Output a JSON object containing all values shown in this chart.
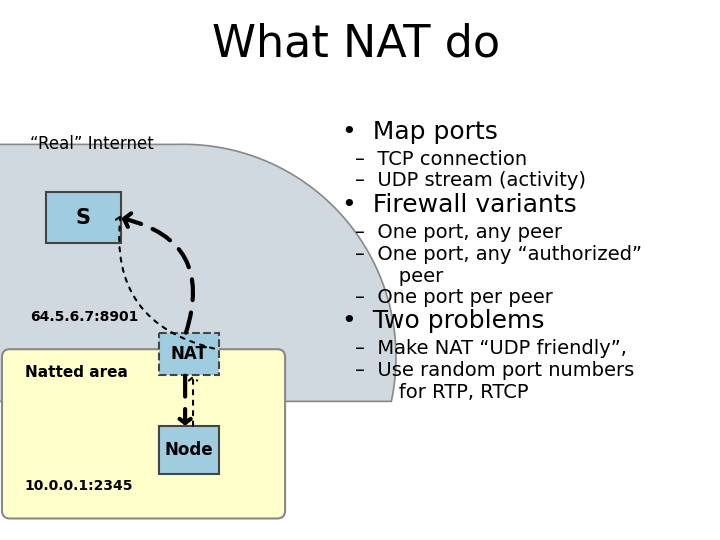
{
  "title": "What NAT do",
  "title_fontsize": 32,
  "background_color": "#ffffff",
  "left_panel": {
    "real_internet_label": "“Real” Internet",
    "real_internet_color": "#d0d8e0",
    "s_box_color": "#a0cce0",
    "s_label": "S",
    "nat_box_color": "#a0cce0",
    "nat_label": "NAT",
    "natted_area_color": "#ffffcc",
    "natted_area_label": "Natted area",
    "node_box_color": "#a0cce0",
    "node_label": "Node",
    "ip_nat": "64.5.6.7:8901",
    "ip_node": "10.0.0.1:2345"
  },
  "bullet_main_fontsize": 18,
  "bullet_sub_fontsize": 14,
  "bullet_points": [
    {
      "level": 0,
      "text": "Map ports"
    },
    {
      "level": 1,
      "text": "–  TCP connection"
    },
    {
      "level": 1,
      "text": "–  UDP stream (activity)"
    },
    {
      "level": 0,
      "text": "Firewall variants"
    },
    {
      "level": 1,
      "text": "–  One port, any peer"
    },
    {
      "level": 1,
      "text": "–  One port, any “authorized”\n       peer"
    },
    {
      "level": 1,
      "text": "–  One port per peer"
    },
    {
      "level": 0,
      "text": "Two problems"
    },
    {
      "level": 1,
      "text": "–  Make NAT “UDP friendly”,"
    },
    {
      "level": 1,
      "text": "–  Use random port numbers\n       for RTP, RTCP"
    }
  ]
}
